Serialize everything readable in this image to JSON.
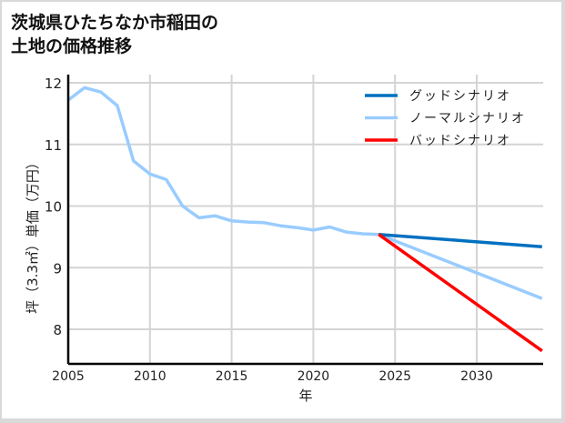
{
  "chart_data": {
    "type": "line",
    "title": "茨城県ひたちなか市稲田の土地の価格推移",
    "title_lines": [
      "茨城県ひたちなか市稲田の",
      "土地の価格推移"
    ],
    "xlabel": "年",
    "ylabel": "坪（3.3㎡）単価（万円）",
    "xlim": [
      2005,
      2034
    ],
    "ylim": [
      7.6,
      12.15
    ],
    "xticks": [
      2005,
      2010,
      2015,
      2020,
      2025,
      2030
    ],
    "yticks": [
      8,
      9,
      10,
      11,
      12
    ],
    "grid": true,
    "legend_position": "upper right",
    "series": [
      {
        "name": "グッドシナリオ",
        "color": "#0070c0",
        "x": [
          2024,
          2034
        ],
        "values": [
          9.54,
          9.34
        ]
      },
      {
        "name": "ノーマルシナリオ",
        "color": "#99ccff",
        "x": [
          2005,
          2006,
          2007,
          2008,
          2009,
          2010,
          2011,
          2012,
          2013,
          2014,
          2015,
          2016,
          2017,
          2018,
          2019,
          2020,
          2021,
          2022,
          2023,
          2024,
          2034
        ],
        "values": [
          11.72,
          11.92,
          11.85,
          11.63,
          10.73,
          10.52,
          10.43,
          10.0,
          9.81,
          9.84,
          9.76,
          9.74,
          9.73,
          9.68,
          9.65,
          9.61,
          9.66,
          9.58,
          9.55,
          9.54,
          8.5
        ]
      },
      {
        "name": "バッドシナリオ",
        "color": "#ff0000",
        "x": [
          2024,
          2034
        ],
        "values": [
          9.54,
          7.65
        ]
      }
    ]
  }
}
